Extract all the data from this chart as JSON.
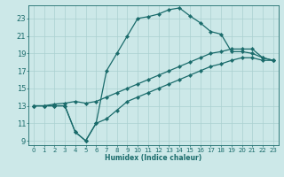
{
  "xlabel": "Humidex (Indice chaleur)",
  "bg_color": "#cce8e8",
  "line_color": "#1a6b6b",
  "grid_color": "#aad0d0",
  "xlim": [
    -0.5,
    23.5
  ],
  "ylim": [
    8.5,
    24.5
  ],
  "xticks": [
    0,
    1,
    2,
    3,
    4,
    5,
    6,
    7,
    8,
    9,
    10,
    11,
    12,
    13,
    14,
    15,
    16,
    17,
    18,
    19,
    20,
    21,
    22,
    23
  ],
  "yticks": [
    9,
    11,
    13,
    15,
    17,
    19,
    21,
    23
  ],
  "line1_up": {
    "x": [
      0,
      1,
      2,
      3,
      4,
      5,
      6,
      7,
      8,
      9,
      10,
      11,
      12,
      13,
      14,
      15,
      16,
      17,
      18,
      19,
      20,
      21,
      22,
      23
    ],
    "y": [
      13,
      13,
      13,
      13,
      10,
      9,
      11,
      17,
      19,
      21,
      23,
      23.2,
      23.5,
      24,
      24.2,
      23.3,
      22.5,
      21.5,
      21.2,
      19.2,
      19.2,
      19.0,
      18.5,
      18.2
    ]
  },
  "line2_low": {
    "x": [
      0,
      1,
      2,
      3,
      4,
      5,
      6,
      7,
      8,
      9,
      10,
      11,
      12,
      13,
      14,
      15,
      16,
      17,
      18,
      19,
      20,
      21,
      22,
      23
    ],
    "y": [
      13,
      13,
      13,
      13,
      10,
      9,
      11,
      11.5,
      12.5,
      13.5,
      14,
      14.5,
      15,
      15.5,
      16,
      16.5,
      17,
      17.5,
      17.8,
      18.2,
      18.5,
      18.5,
      18.2,
      18.2
    ]
  },
  "line3_mid": {
    "x": [
      0,
      1,
      2,
      3,
      4,
      5,
      6,
      7,
      8,
      9,
      10,
      11,
      12,
      13,
      14,
      15,
      16,
      17,
      18,
      19,
      20,
      21,
      22,
      23
    ],
    "y": [
      13,
      13,
      13.2,
      13.3,
      13.5,
      13.3,
      13.5,
      14,
      14.5,
      15,
      15.5,
      16,
      16.5,
      17,
      17.5,
      18,
      18.5,
      19,
      19.2,
      19.5,
      19.5,
      19.5,
      18.5,
      18.2
    ]
  }
}
